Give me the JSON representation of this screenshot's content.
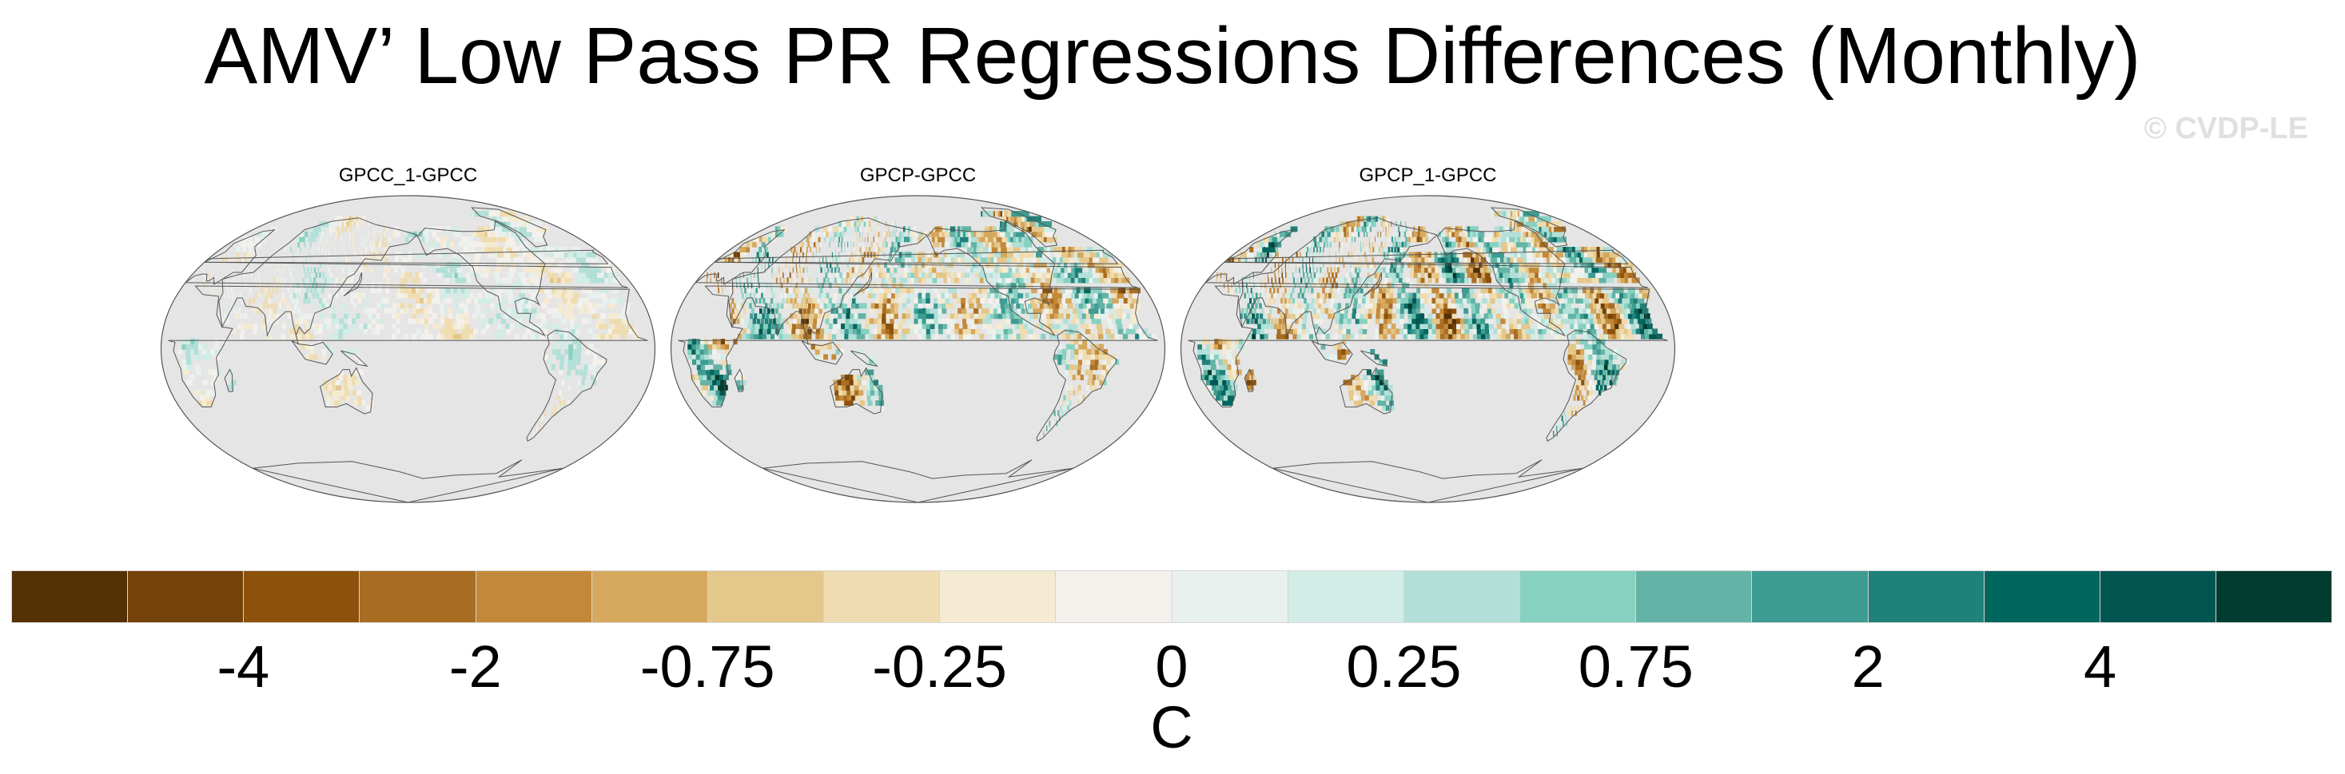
{
  "title": "AMV’ Low Pass PR Regressions Differences (Monthly)",
  "watermark": "© CVDP-LE",
  "chart_data": [
    {
      "type": "heatmap",
      "panel_title": "GPCC_1-GPCC",
      "projection": "global-ellipse, Pacific-centered",
      "pattern_intensity": 0.35
    },
    {
      "type": "heatmap",
      "panel_title": "GPCP-GPCC",
      "projection": "global-ellipse, Pacific-centered",
      "pattern_intensity": 1.0
    },
    {
      "type": "heatmap",
      "panel_title": "GPCP_1-GPCC",
      "projection": "global-ellipse, Pacific-centered",
      "pattern_intensity": 1.0
    }
  ],
  "colorbar": {
    "unit": "C",
    "tick_labels": [
      "-4",
      "-2",
      "-0.75",
      "-0.25",
      "0",
      "0.25",
      "0.75",
      "2",
      "4"
    ],
    "colors": [
      "#543005",
      "#754209",
      "#8c510a",
      "#a86d22",
      "#c3893a",
      "#d5a85e",
      "#e4c78a",
      "#efdcb0",
      "#f5ebd3",
      "#f4f1ec",
      "#e9f1ef",
      "#d2ece6",
      "#b2e0d8",
      "#87d1c1",
      "#63b4a6",
      "#3e9c92",
      "#1f8179",
      "#01665e",
      "#025550",
      "#003c30"
    ],
    "land_color": "#e5e5e5",
    "ocean_color": "#e5e5e5"
  }
}
